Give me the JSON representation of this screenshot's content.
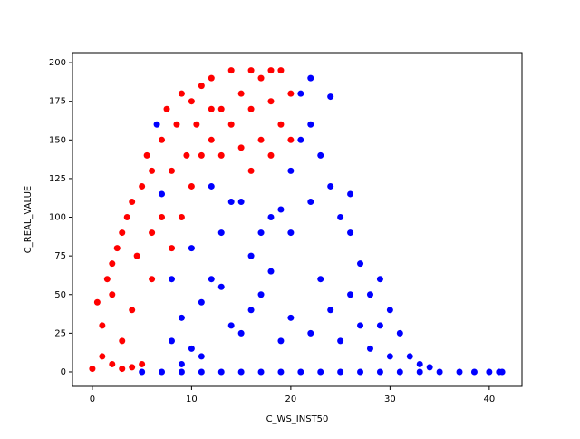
{
  "chart_data": {
    "type": "scatter",
    "xlabel": "C_WS_INST50",
    "ylabel": "C_REAL_VALUE",
    "xlim": [
      -2.0,
      43.3
    ],
    "ylim": [
      -9.4,
      206.5
    ],
    "xticks": [
      0,
      10,
      20,
      30,
      40
    ],
    "yticks": [
      0,
      25,
      50,
      75,
      100,
      125,
      150,
      175,
      200
    ],
    "series": [
      {
        "color": "#0000ff",
        "x": [
          5,
          7,
          9,
          11,
          13,
          15,
          17,
          19,
          21,
          23,
          25,
          27,
          29,
          31,
          33,
          35,
          37,
          38.5,
          40,
          41,
          41.3,
          8,
          9,
          10,
          11,
          12,
          13,
          14,
          15,
          16,
          17,
          18,
          19,
          20,
          21,
          21,
          22,
          22,
          23,
          23,
          24,
          24,
          25,
          25,
          26,
          26,
          27,
          27,
          28,
          28,
          29,
          29,
          30,
          30,
          31,
          32,
          33,
          34,
          6.5,
          7,
          8,
          10,
          12,
          14,
          16,
          18,
          20,
          22,
          24,
          22,
          20,
          13,
          15,
          17,
          19,
          11,
          9,
          26
        ],
        "y": [
          0,
          0,
          0,
          0,
          0,
          0,
          0,
          0,
          0,
          0,
          0,
          0,
          0,
          0,
          0,
          0,
          0,
          0,
          0,
          0,
          0,
          20,
          35,
          15,
          45,
          60,
          90,
          30,
          110,
          75,
          50,
          100,
          20,
          130,
          150,
          180,
          160,
          110,
          140,
          60,
          120,
          40,
          100,
          20,
          90,
          50,
          70,
          30,
          50,
          15,
          60,
          30,
          40,
          10,
          25,
          10,
          5,
          3,
          160,
          115,
          60,
          80,
          120,
          110,
          40,
          65,
          35,
          25,
          178,
          190,
          90,
          55,
          25,
          90,
          105,
          10,
          5,
          115
        ]
      },
      {
        "color": "#ff0000",
        "x": [
          0,
          0.5,
          1,
          1,
          1.5,
          2,
          2,
          2.5,
          3,
          3,
          3.5,
          4,
          4,
          4.5,
          5,
          5,
          5.5,
          6,
          6,
          7,
          7,
          7.5,
          8,
          8,
          8.5,
          9,
          9,
          9.5,
          10,
          10,
          10.5,
          11,
          11,
          12,
          12,
          13,
          13,
          14,
          14,
          15,
          15,
          16,
          16,
          17,
          17,
          18,
          18,
          19,
          19,
          20,
          20,
          3,
          4,
          2,
          6,
          12,
          16,
          18
        ],
        "y": [
          2,
          45,
          10,
          30,
          60,
          5,
          50,
          80,
          20,
          90,
          100,
          40,
          110,
          75,
          5,
          120,
          140,
          60,
          130,
          100,
          150,
          170,
          80,
          130,
          160,
          100,
          180,
          140,
          120,
          175,
          160,
          140,
          185,
          150,
          190,
          170,
          140,
          160,
          195,
          180,
          145,
          170,
          195,
          150,
          190,
          140,
          175,
          160,
          195,
          180,
          150,
          2,
          3,
          70,
          90,
          170,
          130,
          195
        ]
      }
    ]
  }
}
